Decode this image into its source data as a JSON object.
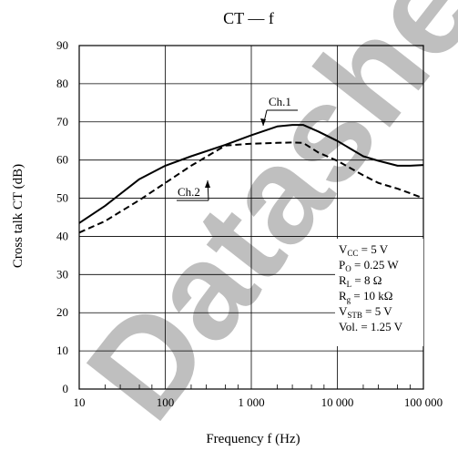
{
  "chart_data": {
    "type": "line",
    "title": "CT — f",
    "xlabel": "Frequency  f  (Hz)",
    "ylabel": "Cross talk  CT  (dB)",
    "x_scale": "log",
    "xlim": [
      10,
      100000
    ],
    "ylim": [
      0,
      90
    ],
    "grid": true,
    "x_ticks": [
      10,
      100,
      1000,
      10000,
      100000
    ],
    "x_tick_labels": [
      "10",
      "100",
      "1 000",
      "10 000",
      "100 000"
    ],
    "y_ticks": [
      0,
      10,
      20,
      30,
      40,
      50,
      60,
      70,
      80,
      90
    ],
    "y_tick_labels": [
      "0",
      "10",
      "20",
      "30",
      "40",
      "50",
      "60",
      "70",
      "80",
      "90"
    ],
    "series": [
      {
        "name": "Ch.1",
        "style": "solid",
        "color": "#000000",
        "x": [
          10,
          20,
          50,
          100,
          200,
          500,
          1000,
          2000,
          3000,
          4000,
          6000,
          10000,
          20000,
          30000,
          50000,
          70000,
          100000
        ],
        "y": [
          43.5,
          48,
          55,
          58.5,
          61,
          64,
          66.5,
          68.8,
          69.2,
          69.2,
          67.5,
          65,
          61,
          59.8,
          58.5,
          58.5,
          58.7
        ]
      },
      {
        "name": "Ch.2",
        "style": "dashed",
        "color": "#000000",
        "x": [
          10,
          20,
          50,
          100,
          200,
          500,
          1000,
          2000,
          3000,
          4000,
          6000,
          10000,
          20000,
          30000,
          50000,
          70000,
          100000
        ],
        "y": [
          41,
          44,
          49.5,
          54,
          58.5,
          63.8,
          64.3,
          64.5,
          64.6,
          64.5,
          62,
          59.8,
          56,
          54,
          52.5,
          51.3,
          50
        ]
      }
    ],
    "annotation": [
      "V_CC = 5 V",
      "P_O = 0.25 W",
      "R_L = 8 Ω",
      "R_g = 10 kΩ",
      "V_STB = 5 V",
      "Vol. = 1.25 V"
    ],
    "watermark_text": "Datasheet",
    "watermark_color": "#e8283c"
  }
}
